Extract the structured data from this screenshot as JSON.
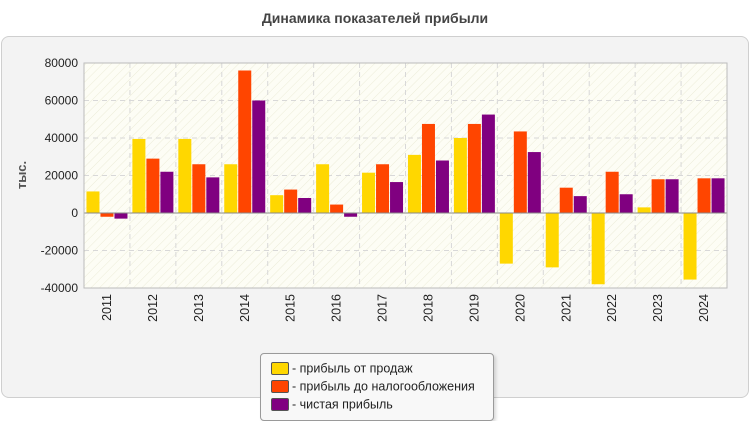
{
  "chart_data": {
    "type": "bar",
    "title": "Динамика показателей прибыли",
    "ylabel": "тыс.",
    "xlabel": "",
    "ylim": [
      -40000,
      80000
    ],
    "yticks": [
      80000,
      60000,
      40000,
      20000,
      0,
      -20000,
      -40000
    ],
    "grid": true,
    "legend_position": "bottom-center",
    "categories": [
      "2011",
      "2012",
      "2013",
      "2014",
      "2015",
      "2016",
      "2017",
      "2018",
      "2019",
      "2020",
      "2021",
      "2022",
      "2023",
      "2024"
    ],
    "series": [
      {
        "name": "- прибыль от продаж",
        "color": "#FFD700",
        "values": [
          11500,
          39500,
          39500,
          26000,
          9500,
          26000,
          21500,
          31000,
          40000,
          -27000,
          -29000,
          -38000,
          3000,
          -35500
        ]
      },
      {
        "name": "- прибыль до налогообложения",
        "color": "#FF4500",
        "values": [
          -2000,
          29000,
          26000,
          76000,
          12500,
          4500,
          26000,
          47500,
          47500,
          43500,
          13500,
          22000,
          18000,
          18500
        ]
      },
      {
        "name": "- чистая прибыль",
        "color": "#800080",
        "values": [
          -3000,
          22000,
          19000,
          60000,
          8000,
          -2000,
          16500,
          28000,
          52500,
          32500,
          9000,
          10000,
          18000,
          18500
        ]
      }
    ]
  }
}
